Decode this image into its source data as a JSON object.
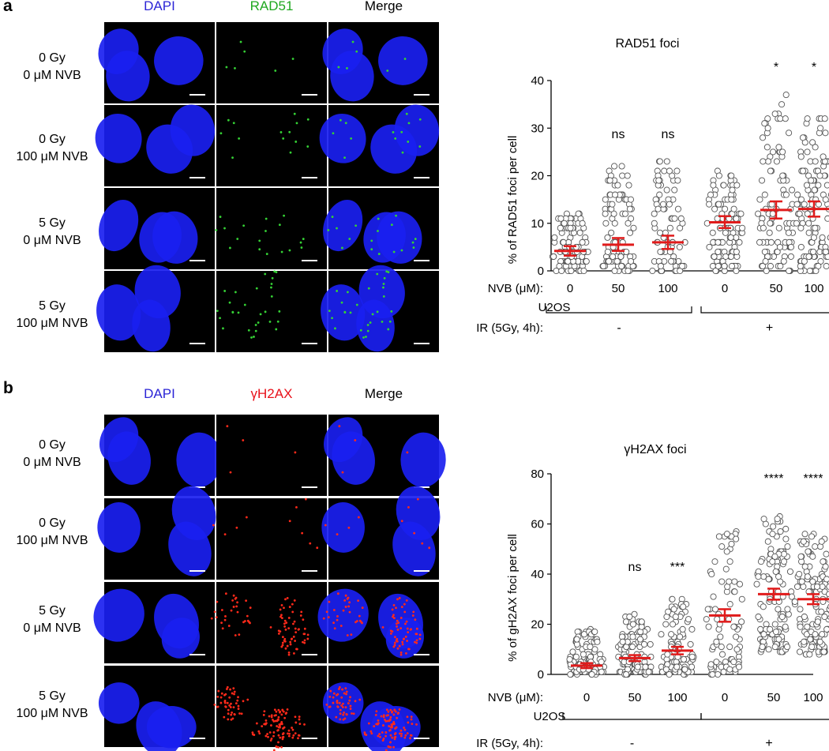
{
  "panels": [
    {
      "letter": "a",
      "channels": [
        "DAPI",
        "RAD51",
        "Merge"
      ],
      "channel_colors": [
        "#2b24d6",
        "#1fa81f",
        "#000000"
      ],
      "rows": [
        {
          "line1": "0 Gy",
          "line2": "0 μM NVB"
        },
        {
          "line1": "0 Gy",
          "line2": "100 μM NVB"
        },
        {
          "line1": "5 Gy",
          "line2": "0 μM NVB"
        },
        {
          "line1": "5 Gy",
          "line2": "100 μM NVB"
        }
      ]
    },
    {
      "letter": "b",
      "channels": [
        "DAPI",
        "γH2AX",
        "Merge"
      ],
      "channel_colors": [
        "#2b24d6",
        "#e8111a",
        "#000000"
      ],
      "rows": [
        {
          "line1": "0 Gy",
          "line2": "0 μM NVB"
        },
        {
          "line1": "0 Gy",
          "line2": "100 μM NVB"
        },
        {
          "line1": "5 Gy",
          "line2": "0 μM NVB"
        },
        {
          "line1": "5 Gy",
          "line2": "100 μM NVB"
        }
      ]
    }
  ],
  "colors": {
    "mean_bar": "#e01b1b",
    "points": "#555555"
  },
  "chart_data": [
    {
      "type": "scatter",
      "title": "RAD51 foci",
      "ylabel": "% of RAD51 foci per cell",
      "ylim": [
        0,
        40
      ],
      "yticks": [
        0,
        10,
        20,
        30,
        40
      ],
      "xlabel_row": "NVB (μM):",
      "categories": [
        "0",
        "50",
        "100",
        "0",
        "50",
        "100"
      ],
      "cell_line": "U2OS",
      "ir_label": "IR (5Gy, 4h):",
      "ir_groups": [
        "-",
        "+"
      ],
      "significance": [
        "",
        "ns",
        "ns",
        "",
        "*",
        "*"
      ],
      "series": [
        {
          "mean": 4.2,
          "ci": [
            3.2,
            5.2
          ],
          "min": 0,
          "max": 12,
          "n": 90
        },
        {
          "mean": 5.5,
          "ci": [
            4.2,
            6.9
          ],
          "min": 0,
          "max": 22,
          "n": 90
        },
        {
          "mean": 6.0,
          "ci": [
            4.6,
            7.4
          ],
          "min": 0,
          "max": 23,
          "n": 80
        },
        {
          "mean": 10.2,
          "ci": [
            9.0,
            11.5
          ],
          "min": 0,
          "max": 21,
          "n": 110
        },
        {
          "mean": 12.8,
          "ci": [
            11.0,
            14.6
          ],
          "min": 0,
          "max": 37,
          "n": 100
        },
        {
          "mean": 13.0,
          "ci": [
            11.4,
            14.6
          ],
          "min": 0,
          "max": 32,
          "n": 120
        }
      ]
    },
    {
      "type": "scatter",
      "title": "γH2AX foci",
      "ylabel": "% of gH2AX foci per cell",
      "ylim": [
        0,
        80
      ],
      "yticks": [
        0,
        20,
        40,
        60,
        80
      ],
      "xlabel_row": "NVB (μM):",
      "categories": [
        "0",
        "50",
        "100",
        "0",
        "50",
        "100"
      ],
      "cell_line": "U2OS",
      "ir_label": "IR (5Gy, 4h):",
      "ir_groups": [
        "-",
        "+"
      ],
      "significance": [
        "",
        "ns",
        "***",
        "",
        "****",
        "****"
      ],
      "series": [
        {
          "mean": 3.5,
          "ci": [
            2.5,
            4.5
          ],
          "min": 0,
          "max": 18,
          "n": 90
        },
        {
          "mean": 6.5,
          "ci": [
            5.3,
            7.7
          ],
          "min": 0,
          "max": 24,
          "n": 100
        },
        {
          "mean": 9.5,
          "ci": [
            8.0,
            11.0
          ],
          "min": 0,
          "max": 30,
          "n": 90
        },
        {
          "mean": 23.5,
          "ci": [
            21.0,
            26.0
          ],
          "min": 0,
          "max": 57,
          "n": 80
        },
        {
          "mean": 32.0,
          "ci": [
            29.8,
            34.2
          ],
          "min": 9,
          "max": 63,
          "n": 120
        },
        {
          "mean": 30.0,
          "ci": [
            28.0,
            32.0
          ],
          "min": 8,
          "max": 56,
          "n": 130
        }
      ]
    }
  ]
}
